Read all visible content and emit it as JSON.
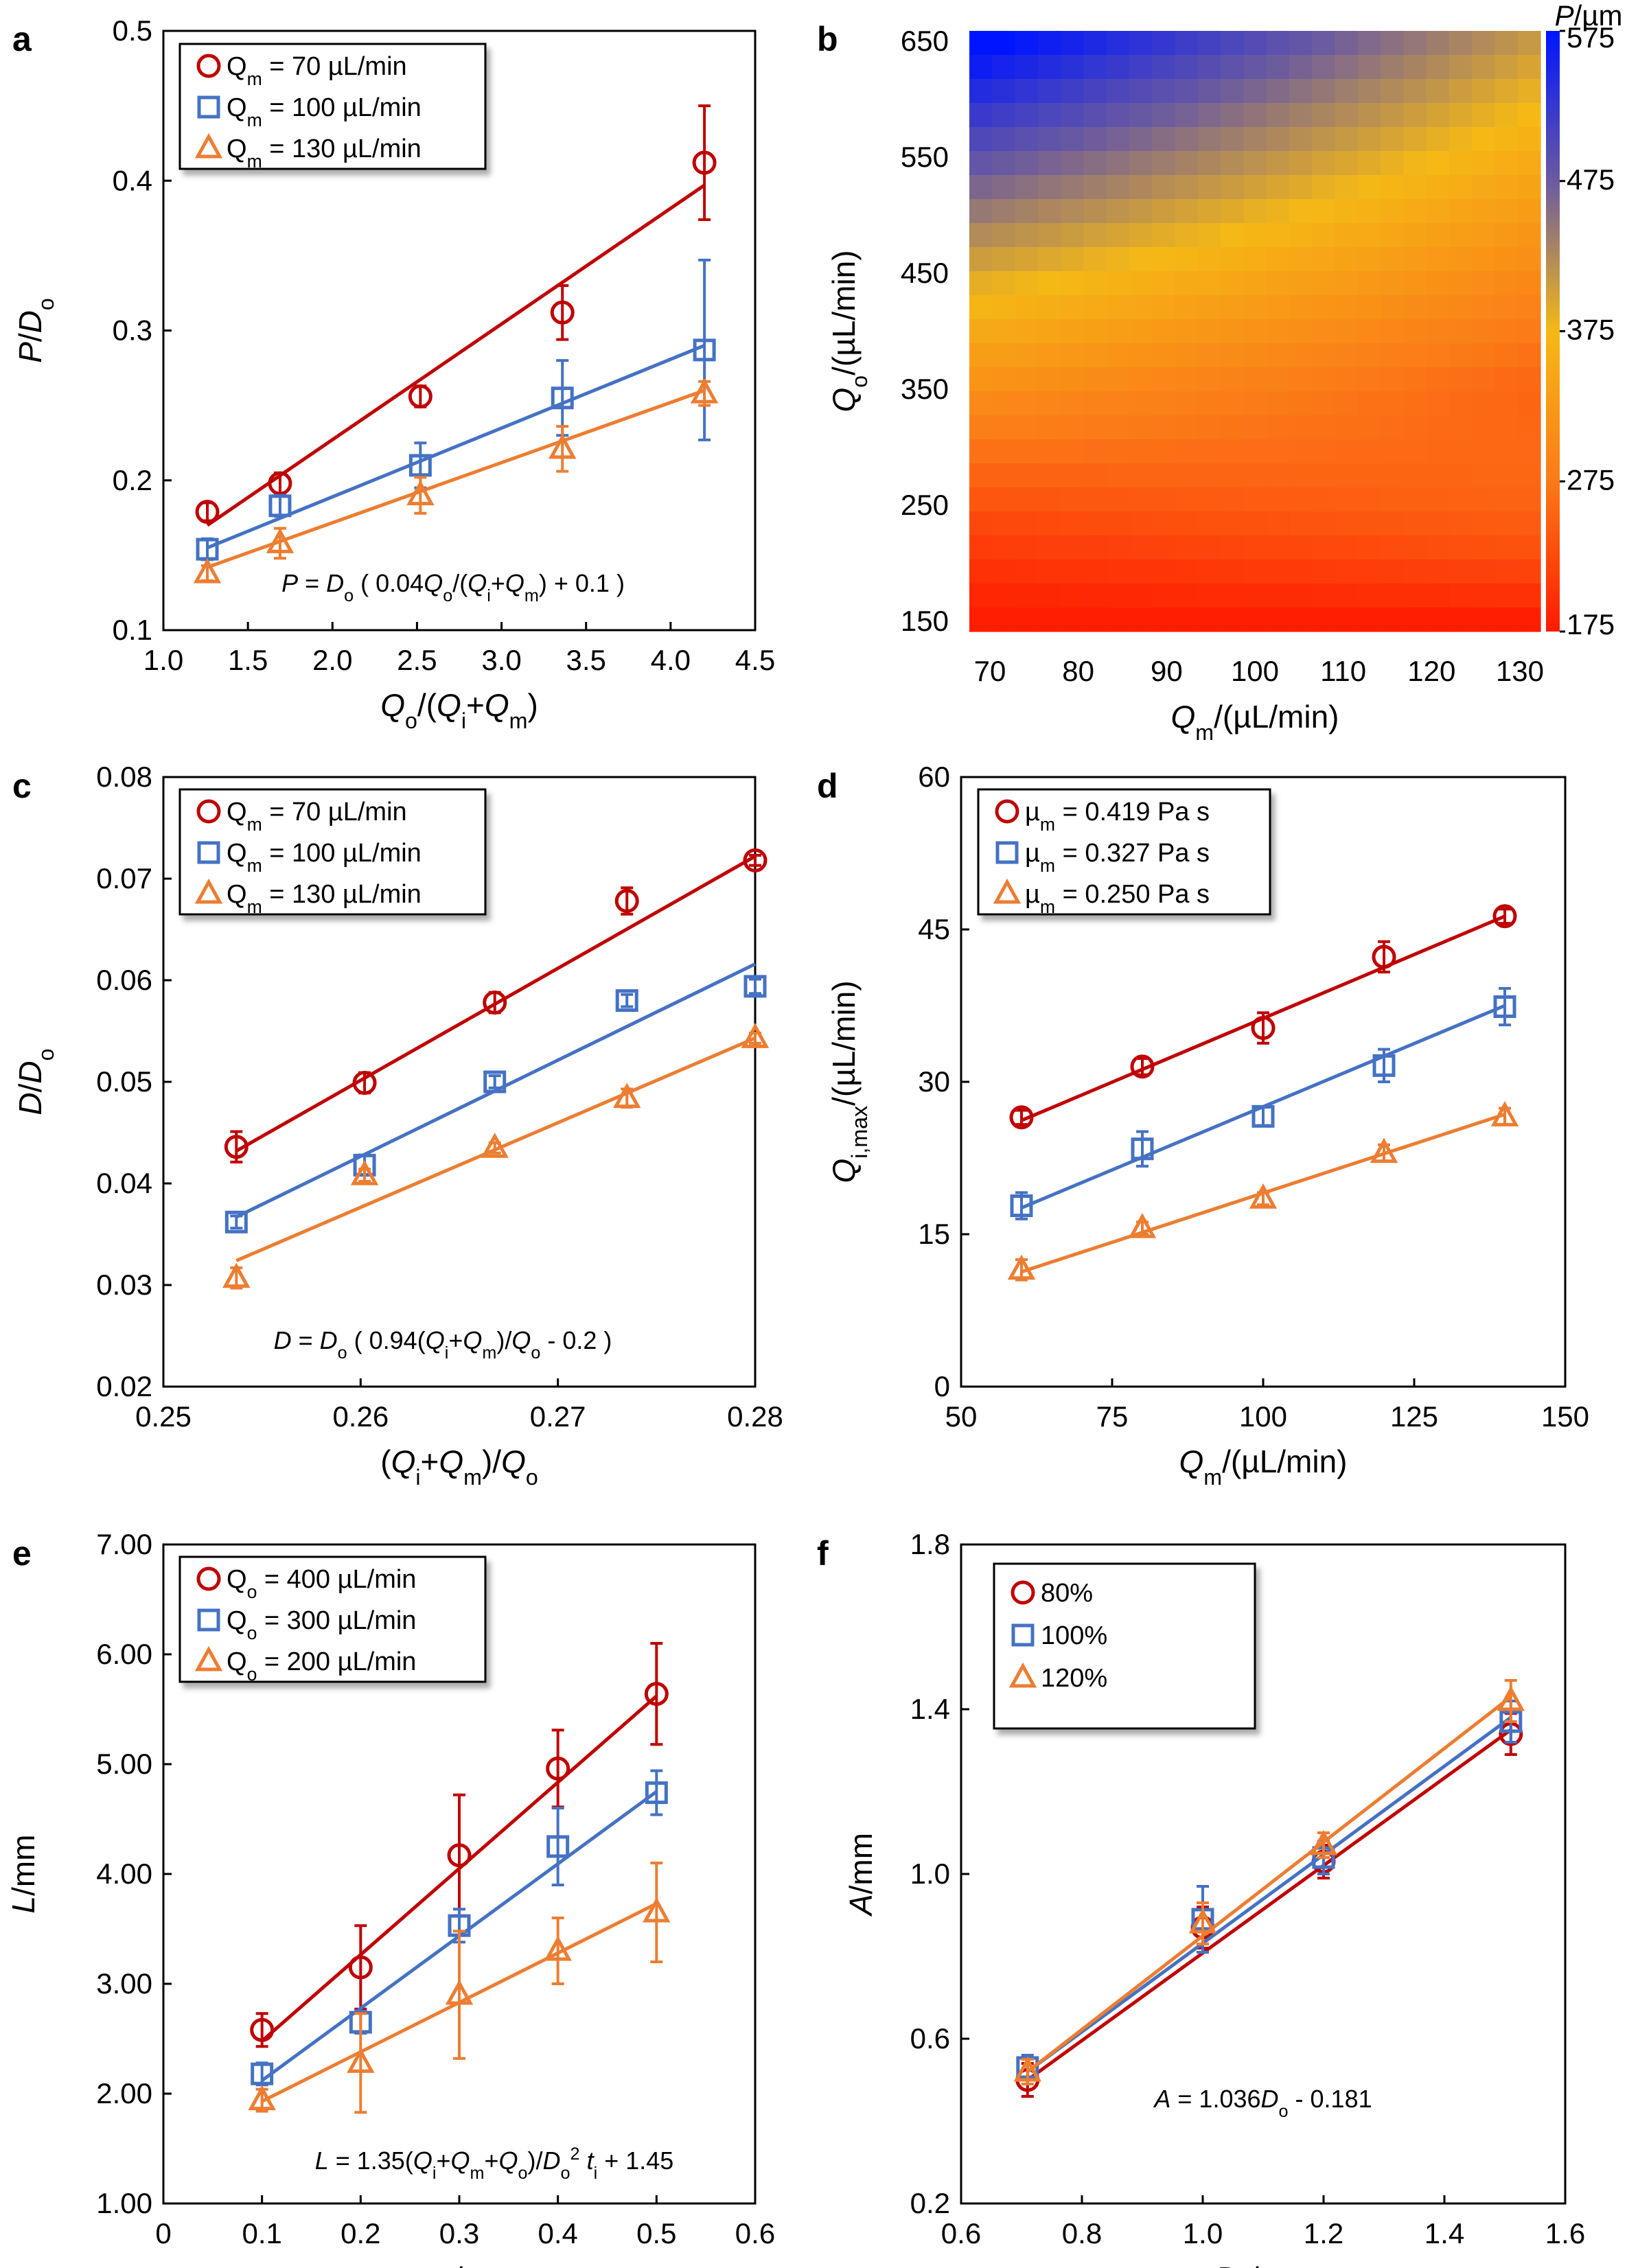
{
  "colors": {
    "red": "#c00000",
    "blue": "#4472c4",
    "orange": "#ed7d31",
    "frame": "#000000"
  },
  "chart_data": [
    {
      "panel": "a",
      "type": "scatter",
      "ylabel_main": "P/D",
      "ylabel_sub": "o",
      "xlabel": "Qo/(Qi+Qm)",
      "xlim": [
        1.0,
        4.5
      ],
      "ylim": [
        0.1,
        0.5
      ],
      "xticks": [
        "1.0",
        "1.5",
        "2.0",
        "2.5",
        "3.0",
        "3.5",
        "4.0",
        "4.5"
      ],
      "yticks": [
        "0.1",
        "0.2",
        "0.3",
        "0.4",
        "0.5"
      ],
      "legend": [
        "Qm = 70 µL/min",
        "Qm = 100 µL/min",
        "Qm = 130 µL/min"
      ],
      "equation": "P = Do ( 0.04 Qo/(Qi+Qm) + 0.1 )",
      "series": [
        {
          "name": "Qm = 70 µL/min",
          "marker": "circle",
          "color": "red",
          "x": [
            1.26,
            1.69,
            2.52,
            3.36,
            4.2
          ],
          "y": [
            0.179,
            0.198,
            0.256,
            0.312,
            0.412
          ],
          "err": [
            0.006,
            0.007,
            0.007,
            0.018,
            0.038
          ],
          "fit": [
            [
              1.26,
              0.17
            ],
            [
              4.2,
              0.397
            ]
          ]
        },
        {
          "name": "Qm = 100 µL/min",
          "marker": "square",
          "color": "blue",
          "x": [
            1.26,
            1.69,
            2.52,
            3.36,
            4.2
          ],
          "y": [
            0.154,
            0.183,
            0.21,
            0.255,
            0.287
          ],
          "err": [
            0.007,
            0.007,
            0.015,
            0.025,
            0.06
          ],
          "fit": [
            [
              1.26,
              0.155
            ],
            [
              4.2,
              0.29
            ]
          ]
        },
        {
          "name": "Qm = 130 µL/min",
          "marker": "triangle",
          "color": "orange",
          "x": [
            1.26,
            1.69,
            2.52,
            3.36,
            4.2
          ],
          "y": [
            0.138,
            0.158,
            0.19,
            0.221,
            0.258
          ],
          "err": [
            0.005,
            0.01,
            0.012,
            0.015,
            0.008
          ],
          "fit": [
            [
              1.26,
              0.142
            ],
            [
              4.2,
              0.26
            ]
          ]
        }
      ]
    },
    {
      "panel": "b",
      "type": "heatmap",
      "ylabel": "Qo/(µL/min)",
      "xlabel": "Qm/(µL/min)",
      "colorbar_title": "P/µm",
      "xticks": [
        "70",
        "80",
        "90",
        "100",
        "110",
        "120",
        "130"
      ],
      "yticks": [
        "150",
        "250",
        "350",
        "450",
        "550",
        "650"
      ],
      "colorbar_ticks": [
        "575",
        "475",
        "375",
        "275",
        "175"
      ],
      "xlim": [
        70,
        130
      ],
      "ylim": [
        150,
        650
      ],
      "clim": [
        175,
        575
      ]
    },
    {
      "panel": "c",
      "type": "scatter",
      "ylabel_main": "D/D",
      "ylabel_sub": "o",
      "xlabel": "(Qi+Qm)/Qo",
      "xlim": [
        0.25,
        0.28
      ],
      "ylim": [
        0.02,
        0.08
      ],
      "xticks": [
        "0.25",
        "0.26",
        "0.27",
        "0.28"
      ],
      "yticks": [
        "0.02",
        "0.03",
        "0.04",
        "0.05",
        "0.06",
        "0.07",
        "0.08"
      ],
      "legend": [
        "Qm = 70 µL/min",
        "Qm = 100 µL/min",
        "Qm = 130 µL/min"
      ],
      "equation": "D = Do ( 0.94 (Qi+Qm)/Qo - 0.2 )",
      "series": [
        {
          "name": "Qm = 70 µL/min",
          "marker": "circle",
          "color": "red",
          "x": [
            0.2537,
            0.2602,
            0.2668,
            0.2735,
            0.28
          ],
          "y": [
            0.0436,
            0.0499,
            0.0578,
            0.0678,
            0.0718
          ],
          "err": [
            0.0015,
            0.001,
            0.001,
            0.0013,
            0.0005
          ],
          "fit": [
            [
              0.2537,
              0.0432
            ],
            [
              0.28,
              0.0722
            ]
          ]
        },
        {
          "name": "Qm = 100 µL/min",
          "marker": "square",
          "color": "blue",
          "x": [
            0.2537,
            0.2602,
            0.2668,
            0.2735,
            0.28
          ],
          "y": [
            0.0362,
            0.0418,
            0.05,
            0.058,
            0.0594
          ],
          "err": [
            0.0006,
            0.001,
            0.0006,
            0.0006,
            0.0007
          ],
          "fit": [
            [
              0.2537,
              0.0367
            ],
            [
              0.28,
              0.0616
            ]
          ]
        },
        {
          "name": "Qm = 130 µL/min",
          "marker": "triangle",
          "color": "orange",
          "x": [
            0.2537,
            0.2602,
            0.2668,
            0.2735,
            0.28
          ],
          "y": [
            0.0307,
            0.0408,
            0.0435,
            0.0484,
            0.0543
          ],
          "err": [
            0.001,
            0.0006,
            0.0005,
            0.0009,
            0.0005
          ],
          "fit": [
            [
              0.2537,
              0.0324
            ],
            [
              0.28,
              0.0543
            ]
          ]
        }
      ]
    },
    {
      "panel": "d",
      "type": "scatter",
      "ylabel_main": "Q",
      "ylabel_sub": "i,max",
      "ylabel_rest": "/(µL/min)",
      "xlabel": "Qm/(µL/min)",
      "xlim": [
        50,
        150
      ],
      "ylim": [
        0,
        60
      ],
      "xticks": [
        "50",
        "75",
        "100",
        "125",
        "150"
      ],
      "yticks": [
        "0",
        "15",
        "30",
        "45",
        "60"
      ],
      "legend": [
        "µm = 0.419 Pa s",
        "µm = 0.327 Pa s",
        "µm = 0.250 Pa s"
      ],
      "series": [
        {
          "name": "µm = 0.419 Pa s",
          "marker": "circle",
          "color": "red",
          "x": [
            60,
            80,
            100,
            120,
            140
          ],
          "y": [
            26.5,
            31.5,
            35.3,
            42.3,
            46.3
          ],
          "err": [
            0.7,
            0.8,
            1.5,
            1.5,
            0.7
          ],
          "fit": [
            [
              60,
              26.2
            ],
            [
              140,
              46.3
            ]
          ]
        },
        {
          "name": "µm = 0.327 Pa s",
          "marker": "square",
          "color": "blue",
          "x": [
            60,
            80,
            100,
            120,
            140
          ],
          "y": [
            17.8,
            23.4,
            26.6,
            31.6,
            37.4
          ],
          "err": [
            1.3,
            1.7,
            0.9,
            1.6,
            1.8
          ],
          "fit": [
            [
              60,
              17.6
            ],
            [
              140,
              37.5
            ]
          ]
        },
        {
          "name": "µm = 0.250 Pa s",
          "marker": "triangle",
          "color": "orange",
          "x": [
            60,
            80,
            100,
            120,
            140
          ],
          "y": [
            11.5,
            15.6,
            18.5,
            23,
            26.6
          ],
          "err": [
            1,
            0.6,
            0.6,
            0.8,
            0.8
          ],
          "fit": [
            [
              60,
              11.3
            ],
            [
              140,
              26.8
            ]
          ]
        }
      ]
    },
    {
      "panel": "e",
      "type": "scatter",
      "ylabel_main": "L/mm",
      "xlabel": "ti/s",
      "xlim": [
        0,
        0.6
      ],
      "ylim": [
        1.0,
        7.0
      ],
      "xticks": [
        "0",
        "0.1",
        "0.2",
        "0.3",
        "0.4",
        "0.5",
        "0.6"
      ],
      "yticks": [
        "1.00",
        "2.00",
        "3.00",
        "4.00",
        "5.00",
        "6.00",
        "7.00"
      ],
      "legend": [
        "Qo = 400 µL/min",
        "Qo = 300 µL/min",
        "Qo = 200 µL/min"
      ],
      "equation": "L = 1.35 (Qi+Qm+Qo)/Do² ti + 1.45",
      "series": [
        {
          "name": "Qo = 400 µL/min",
          "marker": "circle",
          "color": "red",
          "x": [
            0.1,
            0.2,
            0.3,
            0.4,
            0.5
          ],
          "y": [
            2.58,
            3.15,
            4.17,
            4.96,
            5.64
          ],
          "err": [
            0.15,
            0.38,
            0.55,
            0.35,
            0.46
          ],
          "fit": [
            [
              0.1,
              2.48
            ],
            [
              0.5,
              5.62
            ]
          ]
        },
        {
          "name": "Qo = 300 µL/min",
          "marker": "square",
          "color": "blue",
          "x": [
            0.1,
            0.2,
            0.3,
            0.4,
            0.5
          ],
          "y": [
            2.18,
            2.65,
            3.53,
            4.25,
            4.74
          ],
          "err": [
            0.1,
            0.1,
            0.15,
            0.35,
            0.2
          ],
          "fit": [
            [
              0.1,
              2.12
            ],
            [
              0.5,
              4.75
            ]
          ]
        },
        {
          "name": "Qo = 200 µL/min",
          "marker": "triangle",
          "color": "orange",
          "x": [
            0.1,
            0.2,
            0.3,
            0.4,
            0.5
          ],
          "y": [
            1.94,
            2.28,
            2.9,
            3.3,
            3.65
          ],
          "err": [
            0.1,
            0.45,
            0.58,
            0.3,
            0.45
          ],
          "fit": [
            [
              0.1,
              1.93
            ],
            [
              0.5,
              3.73
            ]
          ]
        }
      ]
    },
    {
      "panel": "f",
      "type": "scatter",
      "ylabel_main": "A/mm",
      "xlabel": "Do/mm",
      "xlim": [
        0.6,
        1.6
      ],
      "ylim": [
        0.2,
        1.8
      ],
      "xticks": [
        "0.6",
        "0.8",
        "1.0",
        "1.2",
        "1.4",
        "1.6"
      ],
      "yticks": [
        "0.2",
        "0.6",
        "1.0",
        "1.4",
        "1.8"
      ],
      "legend": [
        "80%",
        "100%",
        "120%"
      ],
      "equation": "A = 1.036Do - 0.181",
      "series": [
        {
          "name": "80%",
          "marker": "circle",
          "color": "red",
          "x": [
            0.71,
            1.0,
            1.2,
            1.51
          ],
          "y": [
            0.5,
            0.87,
            1.03,
            1.34
          ],
          "err": [
            0.04,
            0.05,
            0.04,
            0.05
          ],
          "fit": [
            [
              0.71,
              0.5
            ],
            [
              1.51,
              1.35
            ]
          ]
        },
        {
          "name": "100%",
          "marker": "square",
          "color": "blue",
          "x": [
            0.71,
            1.0,
            1.2,
            1.51
          ],
          "y": [
            0.53,
            0.89,
            1.04,
            1.37
          ],
          "err": [
            0.03,
            0.08,
            0.04,
            0.05
          ],
          "fit": [
            [
              0.71,
              0.52
            ],
            [
              1.51,
              1.38
            ]
          ]
        },
        {
          "name": "120%",
          "marker": "triangle",
          "color": "orange",
          "x": [
            0.71,
            1.0,
            1.2,
            1.51
          ],
          "y": [
            0.52,
            0.88,
            1.07,
            1.42
          ],
          "err": [
            0.03,
            0.05,
            0.03,
            0.05
          ],
          "fit": [
            [
              0.71,
              0.52
            ],
            [
              1.51,
              1.43
            ]
          ]
        }
      ]
    }
  ]
}
